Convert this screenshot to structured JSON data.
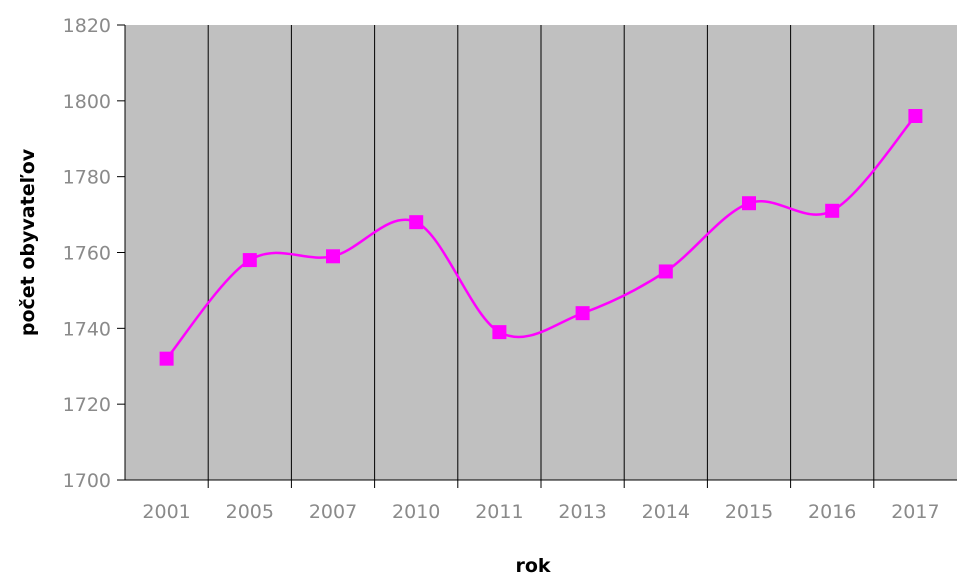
{
  "chart_data": {
    "type": "line",
    "title": "",
    "xlabel": "rok",
    "ylabel": "počet obyvateľov",
    "categories": [
      "2001",
      "2005",
      "2007",
      "2010",
      "2011",
      "2013",
      "2014",
      "2015",
      "2016",
      "2017"
    ],
    "series": [
      {
        "values": [
          1732,
          1758,
          1759,
          1768,
          1739,
          1744,
          1755,
          1773,
          1771,
          1796
        ],
        "color": "#ff00ff",
        "marker": "square",
        "smooth": true
      }
    ],
    "ylim": [
      1700,
      1820
    ],
    "yticks": [
      1700,
      1720,
      1740,
      1760,
      1780,
      1800,
      1820
    ],
    "grid": "vertical",
    "legend": "none",
    "plot_background": "#c0c0c0"
  }
}
